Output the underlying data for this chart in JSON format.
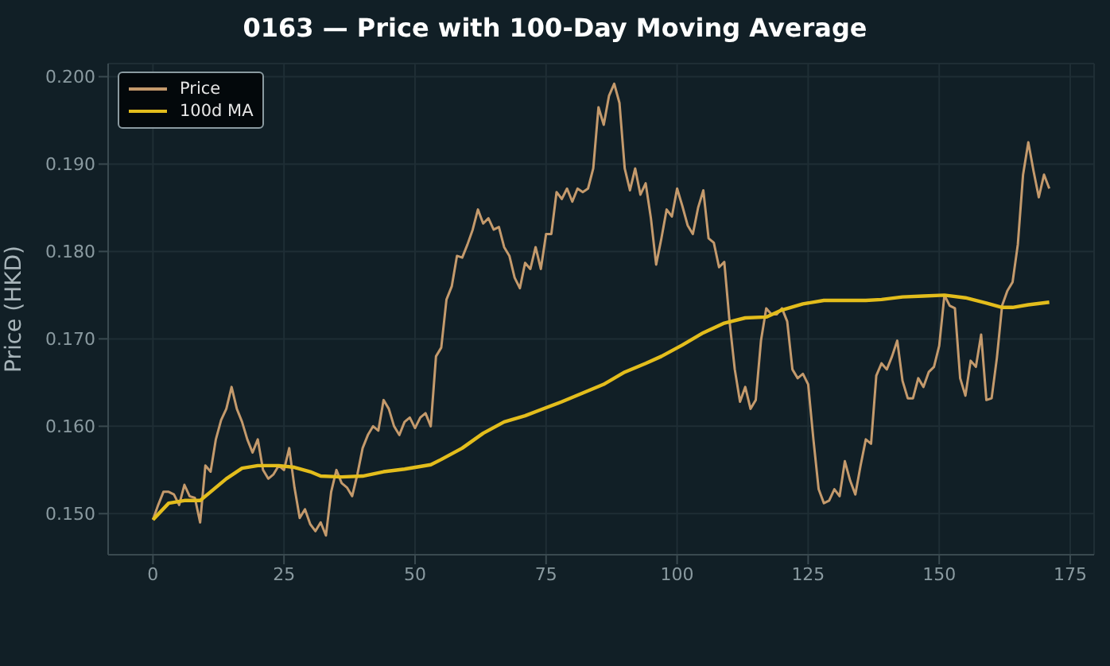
{
  "chart_data": {
    "type": "line",
    "title": "0163 — Price with 100-Day Moving Average",
    "ylabel": "Price (HKD)",
    "x": [
      0,
      1,
      2,
      3,
      4,
      5,
      6,
      7,
      8,
      9,
      10,
      11,
      12,
      13,
      14,
      15,
      16,
      17,
      18,
      19,
      20,
      21,
      22,
      23,
      24,
      25,
      26,
      27,
      28,
      29,
      30,
      31,
      32,
      33,
      34,
      35,
      36,
      37,
      38,
      39,
      40,
      41,
      42,
      43,
      44,
      45,
      46,
      47,
      48,
      49,
      50,
      51,
      52,
      53,
      54,
      55,
      56,
      57,
      58,
      59,
      60,
      61,
      62,
      63,
      64,
      65,
      66,
      67,
      68,
      69,
      70,
      71,
      72,
      73,
      74,
      75,
      76,
      77,
      78,
      79,
      80,
      81,
      82,
      83,
      84,
      85,
      86,
      87,
      88,
      89,
      90,
      91,
      92,
      93,
      94,
      95,
      96,
      97,
      98,
      99,
      100,
      101,
      102,
      103,
      104,
      105,
      106,
      107,
      108,
      109,
      110,
      111,
      112,
      113,
      114,
      115,
      116,
      117,
      118,
      119,
      120,
      121,
      122,
      123,
      124,
      125,
      126,
      127,
      128,
      129,
      130,
      131,
      132,
      133,
      134,
      135,
      136,
      137,
      138,
      139,
      140,
      141,
      142,
      143,
      144,
      145,
      146,
      147,
      148,
      149,
      150,
      151,
      152,
      153,
      154,
      155,
      156,
      157,
      158,
      159,
      160,
      161,
      162,
      163,
      164,
      165,
      166,
      167,
      168,
      169,
      170,
      171
    ],
    "series": [
      {
        "name": "Price",
        "color": "#c49a6c",
        "values": [
          0.1493,
          0.151,
          0.1525,
          0.1525,
          0.1522,
          0.151,
          0.1533,
          0.152,
          0.1518,
          0.149,
          0.1555,
          0.1548,
          0.1585,
          0.1607,
          0.162,
          0.1645,
          0.162,
          0.1605,
          0.1585,
          0.157,
          0.1585,
          0.155,
          0.154,
          0.1545,
          0.1555,
          0.155,
          0.1575,
          0.153,
          0.1495,
          0.1505,
          0.1488,
          0.148,
          0.149,
          0.1475,
          0.1525,
          0.155,
          0.1535,
          0.153,
          0.152,
          0.1545,
          0.1575,
          0.159,
          0.16,
          0.1595,
          0.163,
          0.162,
          0.16,
          0.159,
          0.1605,
          0.161,
          0.1598,
          0.161,
          0.1615,
          0.16,
          0.168,
          0.169,
          0.1745,
          0.176,
          0.1795,
          0.1793,
          0.1808,
          0.1825,
          0.1848,
          0.1832,
          0.1838,
          0.1825,
          0.1828,
          0.1805,
          0.1795,
          0.177,
          0.1758,
          0.1787,
          0.178,
          0.1805,
          0.178,
          0.182,
          0.182,
          0.1868,
          0.186,
          0.1872,
          0.1857,
          0.1872,
          0.1868,
          0.1872,
          0.1895,
          0.1965,
          0.1945,
          0.1978,
          0.1992,
          0.197,
          0.1895,
          0.187,
          0.1895,
          0.1865,
          0.1878,
          0.1838,
          0.1785,
          0.1815,
          0.1848,
          0.184,
          0.1872,
          0.1852,
          0.183,
          0.182,
          0.185,
          0.187,
          0.1815,
          0.181,
          0.1782,
          0.1788,
          0.172,
          0.1665,
          0.1628,
          0.1645,
          0.162,
          0.163,
          0.1698,
          0.1735,
          0.1728,
          0.1728,
          0.1735,
          0.172,
          0.1665,
          0.1655,
          0.166,
          0.1648,
          0.1585,
          0.1528,
          0.1512,
          0.1515,
          0.1528,
          0.152,
          0.156,
          0.1538,
          0.1522,
          0.1555,
          0.1585,
          0.158,
          0.1658,
          0.1672,
          0.1665,
          0.168,
          0.1698,
          0.1652,
          0.1632,
          0.1632,
          0.1655,
          0.1645,
          0.1662,
          0.1668,
          0.1692,
          0.175,
          0.1738,
          0.1735,
          0.1655,
          0.1635,
          0.1675,
          0.1668,
          0.1705,
          0.163,
          0.1632,
          0.1678,
          0.1738,
          0.1755,
          0.1765,
          0.1808,
          0.1888,
          0.1925,
          0.1892,
          0.1862,
          0.1888,
          0.1872
        ]
      },
      {
        "name": "100d MA",
        "color": "#e3bd1c",
        "x": [
          0,
          3,
          6,
          9,
          11,
          14,
          17,
          20,
          24,
          27,
          30,
          32,
          36,
          40,
          44,
          48,
          53,
          55,
          59,
          63,
          67,
          71,
          74,
          78,
          82,
          86,
          90,
          94,
          97,
          101,
          105,
          109,
          113,
          117,
          120,
          124,
          128,
          132,
          136,
          139,
          143,
          147,
          151,
          155,
          159,
          162,
          164,
          167,
          171
        ],
        "values": [
          0.1493,
          0.1512,
          0.1515,
          0.1515,
          0.1525,
          0.154,
          0.1552,
          0.1555,
          0.1555,
          0.1553,
          0.1548,
          0.1543,
          0.1542,
          0.1543,
          0.1548,
          0.1551,
          0.1556,
          0.1562,
          0.1575,
          0.1592,
          0.1605,
          0.1612,
          0.1619,
          0.1628,
          0.1638,
          0.1648,
          0.1662,
          0.1672,
          0.168,
          0.1693,
          0.1707,
          0.1718,
          0.1724,
          0.1725,
          0.1733,
          0.174,
          0.1744,
          0.1744,
          0.1744,
          0.1745,
          0.1748,
          0.1749,
          0.175,
          0.1747,
          0.1741,
          0.1736,
          0.1736,
          0.1739,
          0.1742
        ]
      }
    ],
    "xlim": [
      -8.55,
      179.55
    ],
    "xticks": [
      0,
      25,
      50,
      75,
      100,
      125,
      150,
      175
    ],
    "ylim": [
      0.1453,
      0.2015
    ],
    "yticks": [
      {
        "value": 0.15,
        "label": "0.150"
      },
      {
        "value": 0.16,
        "label": "0.160"
      },
      {
        "value": 0.17,
        "label": "0.170"
      },
      {
        "value": 0.18,
        "label": "0.180"
      },
      {
        "value": 0.19,
        "label": "0.190"
      },
      {
        "value": 0.2,
        "label": "0.200"
      }
    ],
    "grid": true,
    "legend": "top left"
  }
}
